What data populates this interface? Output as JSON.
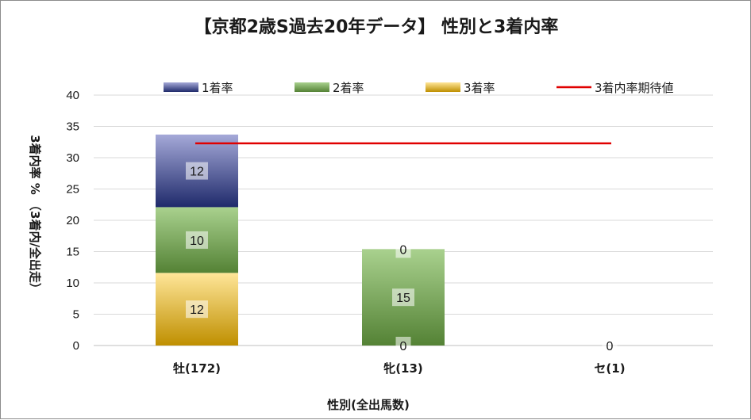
{
  "chart_data": {
    "type": "bar",
    "stacked": true,
    "title": "【京都2歳S過去20年データ】 性別と3着内率",
    "xlabel": "性別(全出馬数)",
    "ylabel": "3着内率 % （3着内/全出走）",
    "ylim": [
      0,
      40
    ],
    "yticks": [
      0,
      5,
      10,
      15,
      20,
      25,
      30,
      35,
      40
    ],
    "grid": true,
    "legend_position": "top",
    "categories": [
      "牡(172)",
      "牝(13)",
      "セ(1)"
    ],
    "series": [
      {
        "name": "3着率",
        "kind": "bar",
        "values": [
          11.6,
          0,
          0
        ],
        "labels": [
          "12",
          "0",
          "0"
        ],
        "colors": [
          "#ffe699",
          "#bf8f00"
        ]
      },
      {
        "name": "2着率",
        "kind": "bar",
        "values": [
          10.5,
          15.4,
          0
        ],
        "labels": [
          "10",
          "15",
          ""
        ],
        "colors": [
          "#a9d18e",
          "#548235"
        ]
      },
      {
        "name": "1着率",
        "kind": "bar",
        "values": [
          11.6,
          0,
          0
        ],
        "labels": [
          "12",
          "0",
          ""
        ],
        "colors": [
          "#a5a9d8",
          "#1f2a6b"
        ]
      },
      {
        "name": "3着内率期待値",
        "kind": "line",
        "value": 32.3,
        "color": "#e00000"
      }
    ],
    "legend_order": [
      "1着率",
      "2着率",
      "3着率",
      "3着内率期待値"
    ]
  }
}
